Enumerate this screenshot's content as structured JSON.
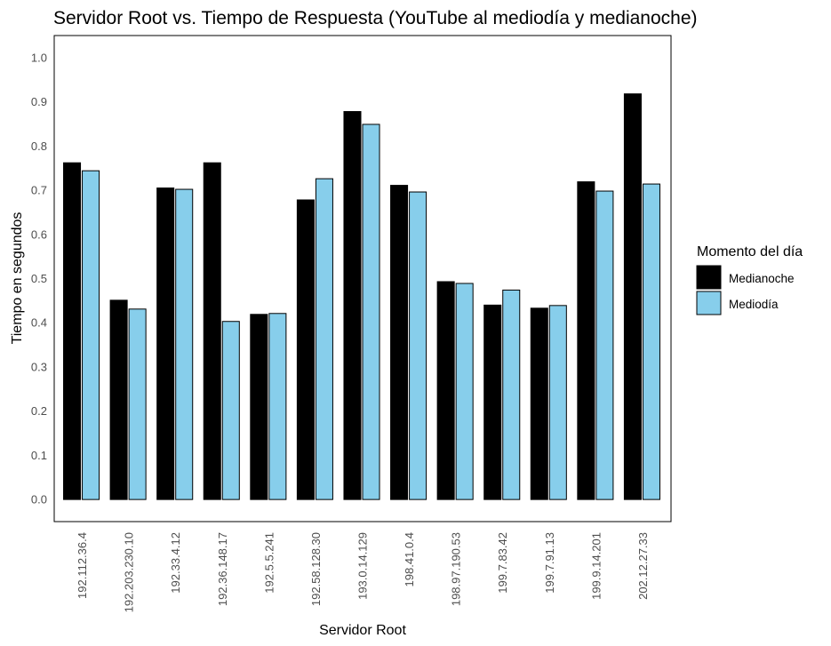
{
  "chart_data": {
    "type": "bar",
    "title": "Servidor Root vs. Tiempo de Respuesta (YouTube al mediodía y medianoche)",
    "xlabel": "Servidor Root",
    "ylabel": "Tiempo en segundos",
    "ylim": [
      -0.05,
      1.05
    ],
    "yticks": [
      "0.0",
      "0.1",
      "0.2",
      "0.3",
      "0.4",
      "0.5",
      "0.6",
      "0.7",
      "0.8",
      "0.9",
      "1.0"
    ],
    "categories": [
      "192.112.36.4",
      "192.203.230.10",
      "192.33.4.12",
      "192.36.148.17",
      "192.5.5.241",
      "192.58.128.30",
      "193.0.14.129",
      "198.41.0.4",
      "198.97.190.53",
      "199.7.83.42",
      "199.7.91.13",
      "199.9.14.201",
      "202.12.27.33"
    ],
    "series": [
      {
        "name": "Medianoche",
        "color": "#000000",
        "values": [
          0.762,
          0.451,
          0.705,
          0.762,
          0.419,
          0.678,
          0.878,
          0.711,
          0.493,
          0.44,
          0.433,
          0.719,
          0.918
        ]
      },
      {
        "name": "Mediodía",
        "color": "#87ceeb",
        "values": [
          0.744,
          0.431,
          0.702,
          0.403,
          0.421,
          0.726,
          0.849,
          0.696,
          0.489,
          0.474,
          0.439,
          0.698,
          0.714
        ]
      }
    ],
    "legend": {
      "title": "Momento del día",
      "position": "right"
    },
    "grid": false
  }
}
